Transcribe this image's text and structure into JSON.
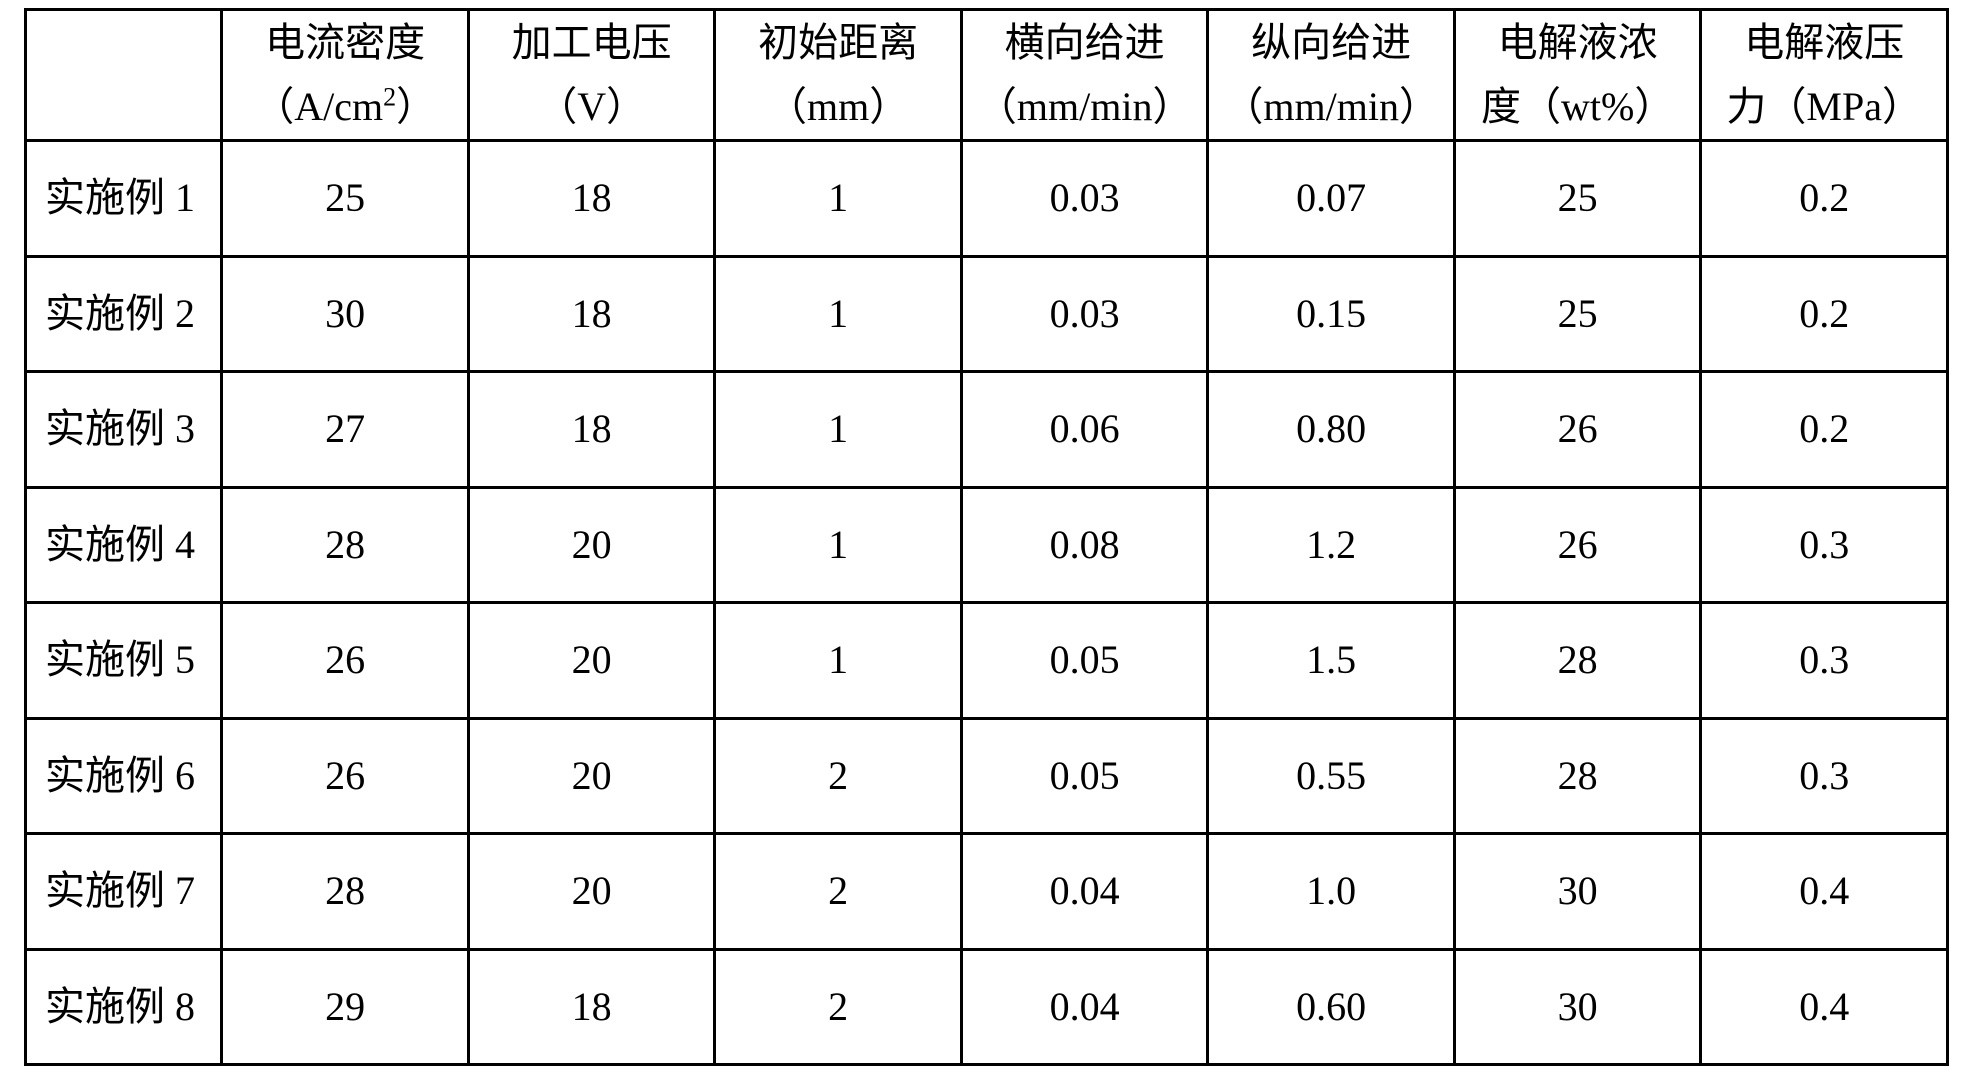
{
  "table": {
    "type": "table",
    "background_color": "#ffffff",
    "border_color": "#000000",
    "text_color": "#000000",
    "font_family": "SimSun",
    "font_size_pt": 30,
    "columns": [
      {
        "label_l1": "",
        "label_l2": "",
        "width_pct": 10.2,
        "align": "left"
      },
      {
        "label_l1": "电流密度",
        "label_l2": "（A/cm²）",
        "width_pct": 12.8,
        "align": "center"
      },
      {
        "label_l1": "加工电压",
        "label_l2": "（V）",
        "width_pct": 12.8,
        "align": "center"
      },
      {
        "label_l1": "初始距离",
        "label_l2": "（mm）",
        "width_pct": 12.8,
        "align": "center"
      },
      {
        "label_l1": "横向给进",
        "label_l2": "（mm/min）",
        "width_pct": 12.8,
        "align": "center"
      },
      {
        "label_l1": "纵向给进",
        "label_l2": "（mm/min）",
        "width_pct": 12.8,
        "align": "center"
      },
      {
        "label_l1": "电解液浓",
        "label_l2": "度（wt%）",
        "width_pct": 12.8,
        "align": "center"
      },
      {
        "label_l1": "电解液压",
        "label_l2": "力（MPa）",
        "width_pct": 12.8,
        "align": "center"
      }
    ],
    "rows": [
      {
        "label": "实施例 1",
        "values": [
          "25",
          "18",
          "1",
          "0.03",
          "0.07",
          "25",
          "0.2"
        ]
      },
      {
        "label": "实施例 2",
        "values": [
          "30",
          "18",
          "1",
          "0.03",
          "0.15",
          "25",
          "0.2"
        ]
      },
      {
        "label": "实施例 3",
        "values": [
          "27",
          "18",
          "1",
          "0.06",
          "0.80",
          "26",
          "0.2"
        ]
      },
      {
        "label": "实施例 4",
        "values": [
          "28",
          "20",
          "1",
          "0.08",
          "1.2",
          "26",
          "0.3"
        ]
      },
      {
        "label": "实施例 5",
        "values": [
          "26",
          "20",
          "1",
          "0.05",
          "1.5",
          "28",
          "0.3"
        ]
      },
      {
        "label": "实施例 6",
        "values": [
          "26",
          "20",
          "2",
          "0.05",
          "0.55",
          "28",
          "0.3"
        ]
      },
      {
        "label": "实施例 7",
        "values": [
          "28",
          "20",
          "2",
          "0.04",
          "1.0",
          "30",
          "0.4"
        ]
      },
      {
        "label": "实施例 8",
        "values": [
          "29",
          "18",
          "2",
          "0.04",
          "0.60",
          "30",
          "0.4"
        ]
      }
    ]
  }
}
